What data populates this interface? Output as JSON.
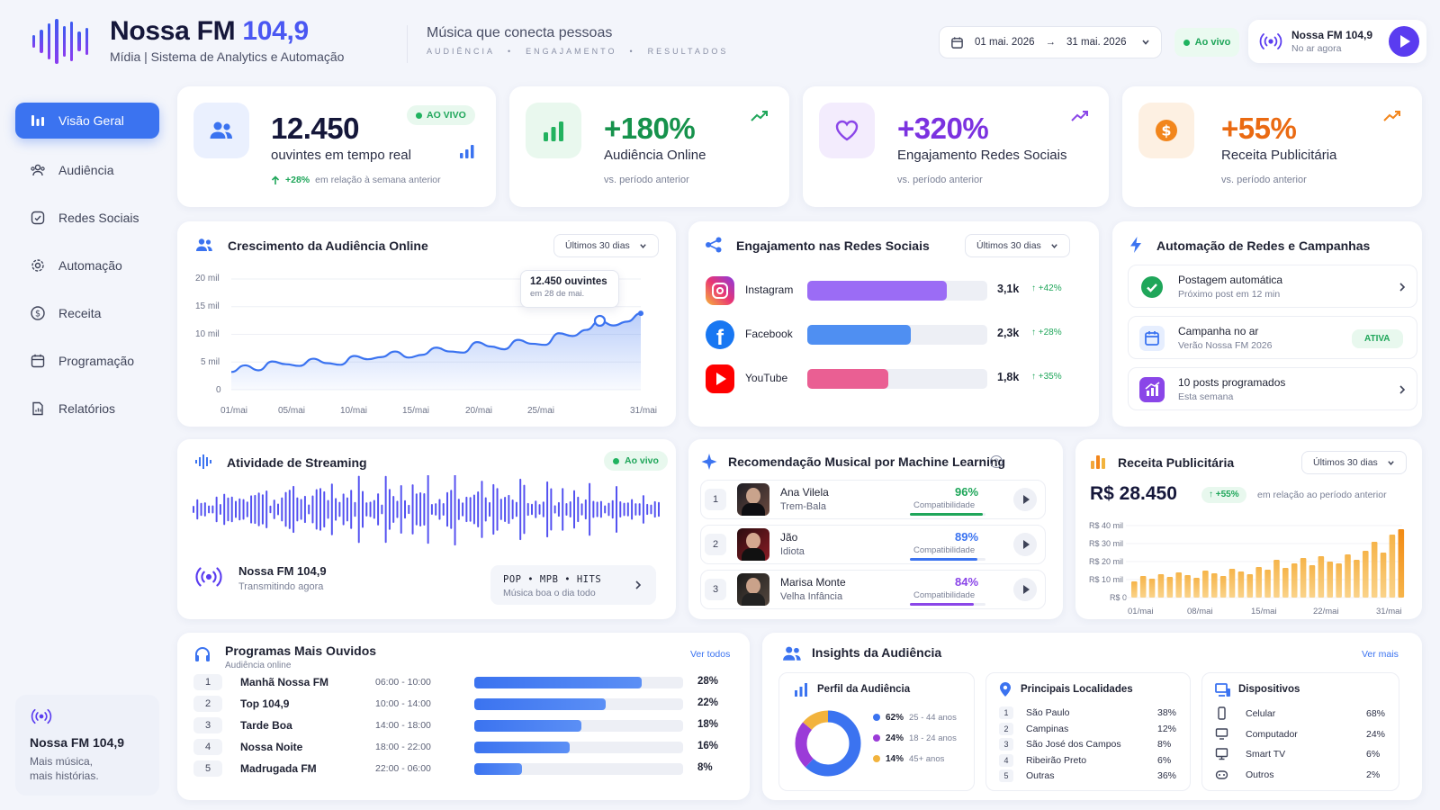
{
  "header": {
    "brand_main": "Nossa FM",
    "brand_freq": "104,9",
    "subtitle": "Mídia | Sistema de Analytics e Automação",
    "tagline": "Música que conecta pessoas",
    "tagwords": [
      "AUDIÊNCIA",
      "•",
      "ENGAJAMENTO",
      "•",
      "RESULTADOS"
    ],
    "date_from": "01 mai. 2026",
    "date_arrow": "→",
    "date_to": "31 mai. 2026",
    "live": "Ao vivo",
    "station_name": "Nossa FM 104,9",
    "station_status": "No ar agora"
  },
  "sidebar": {
    "items": [
      {
        "label": "Visão Geral",
        "icon": "bar-chart-icon"
      },
      {
        "label": "Audiência",
        "icon": "users-icon"
      },
      {
        "label": "Redes Sociais",
        "icon": "social-icon"
      },
      {
        "label": "Automação",
        "icon": "gear-icon"
      },
      {
        "label": "Receita",
        "icon": "dollar-icon"
      },
      {
        "label": "Programação",
        "icon": "calendar-icon"
      },
      {
        "label": "Relatórios",
        "icon": "report-icon"
      }
    ],
    "footer_title": "Nossa FM 104,9",
    "footer_line1": "Mais música,",
    "footer_line2": "mais histórias."
  },
  "kpis": {
    "listeners": {
      "value": "12.450",
      "label": "ouvintes em tempo real",
      "badge": "AO VIVO",
      "delta": "+28%",
      "delta_text": "em relação à semana anterior"
    },
    "audience": {
      "value": "+180%",
      "label": "Audiência Online",
      "sub": "vs. período anterior"
    },
    "engagement": {
      "value": "+320%",
      "label": "Engajamento Redes Sociais",
      "sub": "vs. período anterior"
    },
    "revenue": {
      "value": "+55%",
      "label": "Receita Publicitária",
      "sub": "vs. período anterior"
    }
  },
  "growth": {
    "title": "Crescimento da Audiência Online",
    "range": "Últimos 30 dias",
    "tooltip_value": "12.450 ouvintes",
    "tooltip_date": "em 28 de mai.",
    "chart_data": {
      "type": "area",
      "y_ticks": [
        "20 mil",
        "15 mil",
        "10 mil",
        "5 mil",
        "0"
      ],
      "x_ticks": [
        "01/mai",
        "05/mai",
        "10/mai",
        "15/mai",
        "20/mai",
        "25/mai",
        "31/mai"
      ],
      "ylim": [
        0,
        20000
      ],
      "x": [
        1,
        2,
        3,
        4,
        5,
        6,
        7,
        8,
        9,
        10,
        11,
        12,
        13,
        14,
        15,
        16,
        17,
        18,
        19,
        20,
        21,
        22,
        23,
        24,
        25,
        26,
        27,
        28,
        29,
        30,
        31
      ],
      "values": [
        3200,
        4400,
        3500,
        5100,
        4600,
        4300,
        5600,
        4800,
        4500,
        6100,
        5500,
        5900,
        6900,
        5800,
        6300,
        7600,
        6900,
        6700,
        8600,
        7800,
        7300,
        9000,
        8300,
        8100,
        10200,
        9700,
        10800,
        12450,
        11600,
        12300,
        13800
      ]
    }
  },
  "social": {
    "title": "Engajamento nas Redes Sociais",
    "range": "Últimos 30 dias",
    "chart_data": {
      "type": "bar",
      "categories": [
        "Instagram",
        "Facebook",
        "YouTube"
      ],
      "values": [
        3.1,
        2.3,
        1.8
      ],
      "labels": [
        "3,1k",
        "2,3k",
        "1,8k"
      ],
      "deltas": [
        "+42%",
        "+28%",
        "+35%"
      ],
      "max": 4.0,
      "colors": [
        "#9b6cf5",
        "#4f8ff2",
        "#ea5f93"
      ]
    }
  },
  "automation": {
    "title": "Automação de Redes e Campanhas",
    "items": [
      {
        "title": "Postagem automática",
        "sub": "Próximo post em 12 min"
      },
      {
        "title": "Campanha no ar",
        "sub": "Verão Nossa FM 2026",
        "badge": "ATIVA"
      },
      {
        "title": "10 posts programados",
        "sub": "Esta semana"
      }
    ]
  },
  "streaming": {
    "title": "Atividade de Streaming",
    "live": "Ao vivo",
    "name": "Nossa FM 104,9",
    "status": "Transmitindo agora",
    "genres": "POP • MPB • HITS",
    "genre_sub": "Música boa o dia todo"
  },
  "ml": {
    "title": "Recomendação Musical por Machine Learning",
    "compat_label": "Compatibilidade",
    "items": [
      {
        "rank": "1",
        "artist": "Ana Vilela",
        "song": "Trem-Bala",
        "pct": "96%",
        "value": 96,
        "color": "#1fa65a"
      },
      {
        "rank": "2",
        "artist": "Jão",
        "song": "Idiota",
        "pct": "89%",
        "value": 89,
        "color": "#3b73f0"
      },
      {
        "rank": "3",
        "artist": "Marisa Monte",
        "song": "Velha Infância",
        "pct": "84%",
        "value": 84,
        "color": "#8a46e8"
      }
    ]
  },
  "revenue": {
    "title": "Receita Publicitária",
    "range": "Últimos 30 dias",
    "total": "R$ 28.450",
    "delta": "+55%",
    "delta_text": "em relação ao período anterior",
    "chart_data": {
      "type": "bar",
      "y_ticks": [
        "R$ 40 mil",
        "R$ 30 mil",
        "R$ 20 mil",
        "R$ 10 mil",
        "R$ 0"
      ],
      "x_ticks": [
        "01/mai",
        "08/mai",
        "15/mai",
        "22/mai",
        "31/mai"
      ],
      "ylim": [
        0,
        40000
      ],
      "values": [
        9000,
        12000,
        10500,
        13000,
        11500,
        14000,
        12500,
        11000,
        15000,
        13500,
        12000,
        16000,
        14500,
        13000,
        17000,
        15500,
        21000,
        16500,
        19000,
        22000,
        18000,
        23000,
        20000,
        19000,
        24000,
        21000,
        26000,
        31000,
        25000,
        35000,
        38000
      ]
    }
  },
  "programs": {
    "title": "Programas Mais Ouvidos",
    "subtitle": "Audiência online",
    "link": "Ver todos",
    "rows": [
      {
        "rank": "1",
        "name": "Manhã Nossa FM",
        "time": "06:00 - 10:00",
        "pct": "28%",
        "value": 28
      },
      {
        "rank": "2",
        "name": "Top 104,9",
        "time": "10:00 - 14:00",
        "pct": "22%",
        "value": 22
      },
      {
        "rank": "3",
        "name": "Tarde Boa",
        "time": "14:00 - 18:00",
        "pct": "18%",
        "value": 18
      },
      {
        "rank": "4",
        "name": "Nossa Noite",
        "time": "18:00 - 22:00",
        "pct": "16%",
        "value": 16
      },
      {
        "rank": "5",
        "name": "Madrugada FM",
        "time": "22:00 - 06:00",
        "pct": "8%",
        "value": 8
      }
    ]
  },
  "insights": {
    "title": "Insights da Audiência",
    "link": "Ver mais",
    "profile": {
      "title": "Perfil da Audiência",
      "chart_data": {
        "type": "pie",
        "values": [
          62,
          24,
          14
        ],
        "pcts": [
          "62%",
          "24%",
          "14%"
        ],
        "labels": [
          "25 - 44 anos",
          "18 - 24 anos",
          "45+ anos"
        ],
        "colors": [
          "#3b73f0",
          "#9b3bd8",
          "#f2b33d"
        ]
      }
    },
    "locations": {
      "title": "Principais Localidades",
      "rows": [
        {
          "rank": "1",
          "name": "São Paulo",
          "pct": "38%"
        },
        {
          "rank": "2",
          "name": "Campinas",
          "pct": "12%"
        },
        {
          "rank": "3",
          "name": "São José dos Campos",
          "pct": "8%"
        },
        {
          "rank": "4",
          "name": "Ribeirão Preto",
          "pct": "6%"
        },
        {
          "rank": "5",
          "name": "Outras",
          "pct": "36%"
        }
      ]
    },
    "devices": {
      "title": "Dispositivos",
      "rows": [
        {
          "name": "Celular",
          "pct": "68%",
          "icon": "phone-icon"
        },
        {
          "name": "Computador",
          "pct": "24%",
          "icon": "monitor-icon"
        },
        {
          "name": "Smart TV",
          "pct": "6%",
          "icon": "tv-icon"
        },
        {
          "name": "Outros",
          "pct": "2%",
          "icon": "devices-icon"
        }
      ]
    }
  },
  "colors": {
    "primary": "#3b73f0",
    "brand": "#4a57f2",
    "green": "#1fa65a",
    "purple": "#8a46e8",
    "orange": "#f08a1c"
  }
}
